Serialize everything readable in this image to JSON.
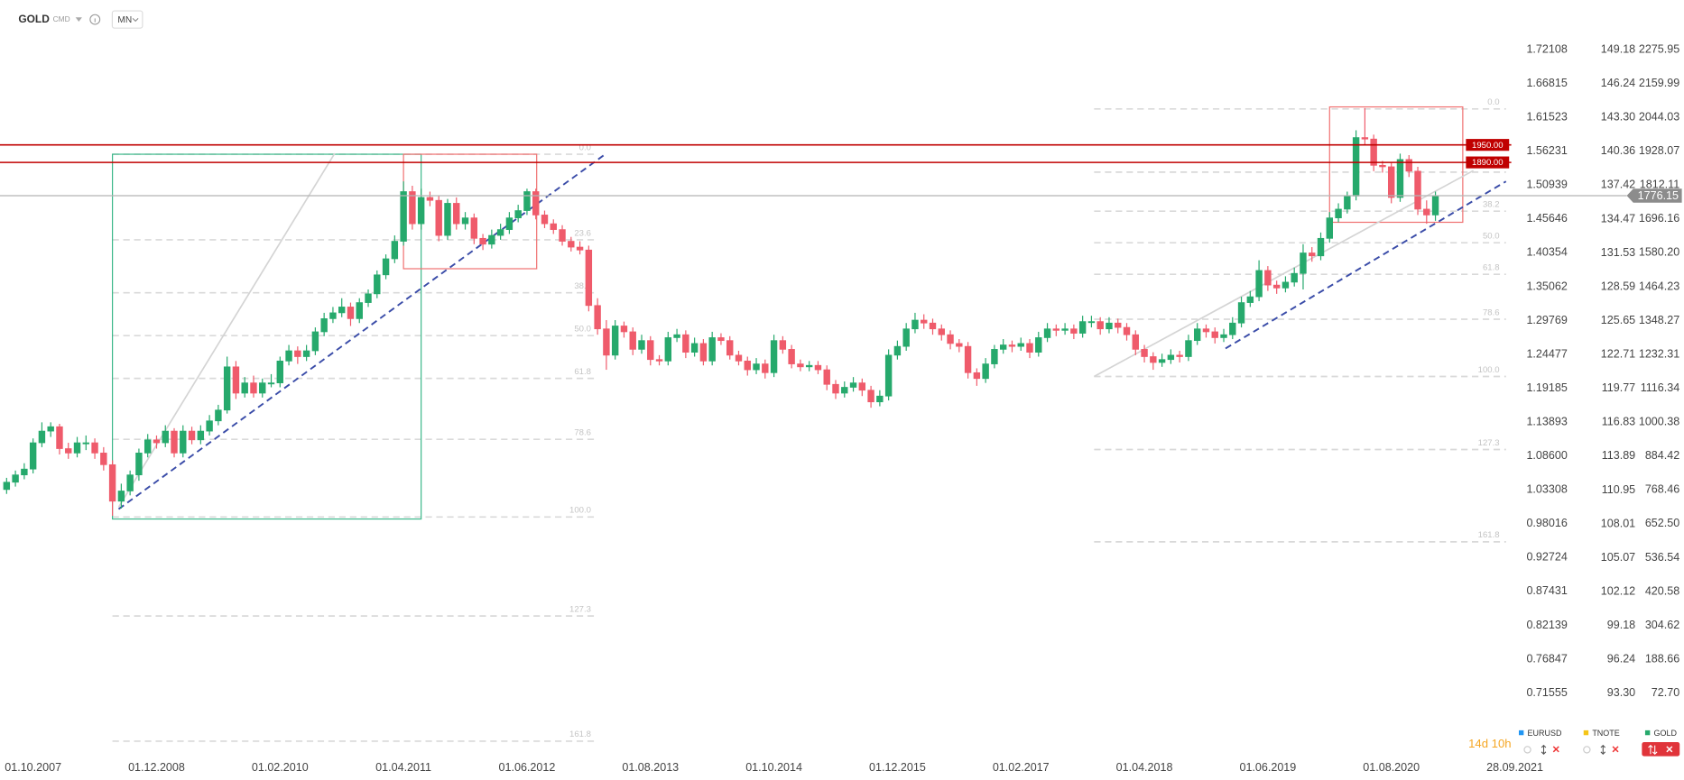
{
  "chart_data": {
    "type": "candlestick",
    "symbol": "GOLD",
    "market": "CMD",
    "interval": "MN",
    "up_color": "#26a96c",
    "down_color": "#ef5b6b",
    "grid": false,
    "xlim": [
      -0.75,
      170.6
    ],
    "xticks": [
      {
        "value": 3,
        "label": "01.10.2007"
      },
      {
        "value": 17,
        "label": "01.12.2008"
      },
      {
        "value": 31,
        "label": "01.02.2010"
      },
      {
        "value": 45,
        "label": "01.04.2011"
      },
      {
        "value": 59,
        "label": "01.06.2012"
      },
      {
        "value": 73,
        "label": "01.08.2013"
      },
      {
        "value": 87,
        "label": "01.10.2014"
      },
      {
        "value": 101,
        "label": "01.12.2015"
      },
      {
        "value": 115,
        "label": "01.02.2017"
      },
      {
        "value": 129,
        "label": "01.04.2018"
      },
      {
        "value": 143,
        "label": "01.06.2019"
      },
      {
        "value": 157,
        "label": "01.08.2020"
      },
      {
        "value": 171,
        "label": "28.09.2021"
      }
    ],
    "ylim": [
      -139.4,
      2445.8
    ],
    "yticks": [
      2275.95,
      2159.99,
      2044.03,
      1928.07,
      1812.11,
      1696.16,
      {
        "value": 1580.2,
        "label": "1580.20"
      },
      1464.23,
      1348.27,
      1232.31,
      1116.34,
      1000.38,
      884.42,
      768.46,
      {
        "value": 652.5,
        "label": "652.50"
      },
      536.54,
      420.58,
      304.62,
      188.66,
      {
        "value": 72.7,
        "label": "72.70"
      }
    ],
    "y2lim": [
      0.61855,
      1.79862
    ],
    "y2ticks": [
      1.72108,
      1.66815,
      1.61523,
      1.56231,
      1.50939,
      1.45646,
      1.40354,
      1.35062,
      1.29769,
      1.24477,
      1.19185,
      1.13893,
      {
        "value": 1.086,
        "label": "1.08600"
      },
      1.03308,
      0.98016,
      0.92724,
      0.87431,
      0.82139,
      0.76847,
      0.71555
    ],
    "y3lim": [
      87.94,
      153.49
    ],
    "y3ticks": [
      149.18,
      146.24,
      {
        "value": 143.3,
        "label": "143.30"
      },
      140.36,
      137.42,
      134.47,
      131.53,
      128.59,
      125.65,
      122.71,
      119.77,
      116.83,
      113.89,
      110.95,
      108.01,
      105.07,
      102.12,
      99.18,
      96.24,
      {
        "value": 93.3,
        "label": "93.30"
      }
    ],
    "ohlc": [
      [
        770,
        810,
        755,
        795
      ],
      [
        795,
        835,
        780,
        820
      ],
      [
        820,
        860,
        805,
        840
      ],
      [
        840,
        945,
        825,
        930
      ],
      [
        930,
        1000,
        915,
        970
      ],
      [
        970,
        1000,
        950,
        985
      ],
      [
        985,
        995,
        890,
        910
      ],
      [
        910,
        930,
        875,
        895
      ],
      [
        895,
        950,
        880,
        930
      ],
      [
        930,
        955,
        905,
        930
      ],
      [
        930,
        945,
        875,
        895
      ],
      [
        895,
        915,
        835,
        855
      ],
      [
        855,
        870,
        680,
        730
      ],
      [
        730,
        790,
        705,
        765
      ],
      [
        765,
        835,
        750,
        820
      ],
      [
        820,
        910,
        800,
        895
      ],
      [
        895,
        960,
        880,
        940
      ],
      [
        940,
        955,
        910,
        930
      ],
      [
        930,
        990,
        915,
        970
      ],
      [
        970,
        980,
        880,
        895
      ],
      [
        895,
        990,
        880,
        970
      ],
      [
        970,
        985,
        925,
        940
      ],
      [
        940,
        990,
        925,
        970
      ],
      [
        970,
        1025,
        955,
        1005
      ],
      [
        1005,
        1060,
        990,
        1042
      ],
      [
        1042,
        1225,
        1030,
        1190
      ],
      [
        1190,
        1210,
        1080,
        1100
      ],
      [
        1100,
        1155,
        1085,
        1135
      ],
      [
        1135,
        1160,
        1085,
        1100
      ],
      [
        1100,
        1150,
        1085,
        1135
      ],
      [
        1135,
        1165,
        1120,
        1135
      ],
      [
        1135,
        1225,
        1120,
        1210
      ],
      [
        1210,
        1265,
        1195,
        1245
      ],
      [
        1245,
        1260,
        1200,
        1225
      ],
      [
        1225,
        1265,
        1210,
        1245
      ],
      [
        1245,
        1325,
        1230,
        1310
      ],
      [
        1310,
        1375,
        1295,
        1355
      ],
      [
        1355,
        1395,
        1340,
        1375
      ],
      [
        1375,
        1425,
        1360,
        1395
      ],
      [
        1395,
        1410,
        1330,
        1355
      ],
      [
        1355,
        1425,
        1340,
        1410
      ],
      [
        1410,
        1455,
        1395,
        1440
      ],
      [
        1440,
        1520,
        1425,
        1505
      ],
      [
        1505,
        1575,
        1490,
        1560
      ],
      [
        1560,
        1640,
        1545,
        1620
      ],
      [
        1620,
        1825,
        1605,
        1790
      ],
      [
        1790,
        1810,
        1660,
        1680
      ],
      [
        1680,
        1800,
        1660,
        1770
      ],
      [
        1770,
        1790,
        1740,
        1760
      ],
      [
        1760,
        1775,
        1620,
        1640
      ],
      [
        1640,
        1765,
        1625,
        1750
      ],
      [
        1750,
        1770,
        1660,
        1680
      ],
      [
        1680,
        1720,
        1660,
        1700
      ],
      [
        1700,
        1715,
        1610,
        1630
      ],
      [
        1630,
        1645,
        1590,
        1610
      ],
      [
        1610,
        1660,
        1595,
        1640
      ],
      [
        1640,
        1680,
        1625,
        1660
      ],
      [
        1660,
        1720,
        1645,
        1700
      ],
      [
        1700,
        1745,
        1685,
        1725
      ],
      [
        1725,
        1800,
        1710,
        1790
      ],
      [
        1790,
        1800,
        1695,
        1710
      ],
      [
        1710,
        1725,
        1665,
        1680
      ],
      [
        1680,
        1695,
        1645,
        1660
      ],
      [
        1660,
        1675,
        1605,
        1620
      ],
      [
        1620,
        1635,
        1585,
        1600
      ],
      [
        1600,
        1620,
        1575,
        1590
      ],
      [
        1590,
        1605,
        1380,
        1400
      ],
      [
        1400,
        1425,
        1300,
        1320
      ],
      [
        1320,
        1350,
        1180,
        1230
      ],
      [
        1230,
        1350,
        1215,
        1330
      ],
      [
        1330,
        1345,
        1290,
        1310
      ],
      [
        1310,
        1325,
        1230,
        1250
      ],
      [
        1250,
        1300,
        1235,
        1280
      ],
      [
        1280,
        1295,
        1195,
        1215
      ],
      [
        1215,
        1230,
        1195,
        1210
      ],
      [
        1210,
        1310,
        1195,
        1290
      ],
      [
        1290,
        1320,
        1275,
        1300
      ],
      [
        1300,
        1315,
        1220,
        1240
      ],
      [
        1240,
        1290,
        1225,
        1270
      ],
      [
        1270,
        1285,
        1195,
        1210
      ],
      [
        1210,
        1310,
        1195,
        1290
      ],
      [
        1290,
        1305,
        1265,
        1280
      ],
      [
        1280,
        1295,
        1215,
        1230
      ],
      [
        1230,
        1245,
        1195,
        1210
      ],
      [
        1210,
        1225,
        1160,
        1180
      ],
      [
        1180,
        1220,
        1165,
        1200
      ],
      [
        1200,
        1215,
        1150,
        1170
      ],
      [
        1170,
        1300,
        1155,
        1280
      ],
      [
        1280,
        1295,
        1235,
        1250
      ],
      [
        1250,
        1265,
        1185,
        1200
      ],
      [
        1200,
        1215,
        1175,
        1190
      ],
      [
        1190,
        1210,
        1175,
        1195
      ],
      [
        1195,
        1210,
        1165,
        1180
      ],
      [
        1180,
        1195,
        1110,
        1130
      ],
      [
        1130,
        1145,
        1080,
        1100
      ],
      [
        1100,
        1140,
        1085,
        1120
      ],
      [
        1120,
        1155,
        1105,
        1135
      ],
      [
        1135,
        1150,
        1090,
        1110
      ],
      [
        1110,
        1125,
        1050,
        1070
      ],
      [
        1070,
        1110,
        1055,
        1090
      ],
      [
        1090,
        1250,
        1075,
        1230
      ],
      [
        1230,
        1280,
        1215,
        1260
      ],
      [
        1260,
        1340,
        1245,
        1320
      ],
      [
        1320,
        1375,
        1305,
        1350
      ],
      [
        1350,
        1370,
        1320,
        1340
      ],
      [
        1340,
        1355,
        1300,
        1320
      ],
      [
        1320,
        1335,
        1280,
        1300
      ],
      [
        1300,
        1315,
        1250,
        1270
      ],
      [
        1270,
        1285,
        1240,
        1260
      ],
      [
        1260,
        1275,
        1150,
        1170
      ],
      [
        1170,
        1185,
        1125,
        1150
      ],
      [
        1150,
        1220,
        1135,
        1200
      ],
      [
        1200,
        1265,
        1185,
        1250
      ],
      [
        1250,
        1285,
        1235,
        1265
      ],
      [
        1265,
        1280,
        1240,
        1260
      ],
      [
        1260,
        1290,
        1245,
        1270
      ],
      [
        1270,
        1285,
        1220,
        1240
      ],
      [
        1240,
        1310,
        1225,
        1290
      ],
      [
        1290,
        1340,
        1275,
        1320
      ],
      [
        1320,
        1335,
        1295,
        1315
      ],
      [
        1315,
        1340,
        1300,
        1320
      ],
      [
        1320,
        1335,
        1285,
        1305
      ],
      [
        1305,
        1365,
        1290,
        1345
      ],
      [
        1345,
        1365,
        1325,
        1345
      ],
      [
        1345,
        1360,
        1300,
        1320
      ],
      [
        1320,
        1360,
        1305,
        1340
      ],
      [
        1340,
        1355,
        1305,
        1325
      ],
      [
        1325,
        1340,
        1280,
        1300
      ],
      [
        1300,
        1315,
        1230,
        1250
      ],
      [
        1250,
        1265,
        1205,
        1225
      ],
      [
        1225,
        1240,
        1180,
        1205
      ],
      [
        1205,
        1235,
        1190,
        1215
      ],
      [
        1215,
        1250,
        1200,
        1230
      ],
      [
        1230,
        1245,
        1205,
        1225
      ],
      [
        1225,
        1300,
        1210,
        1280
      ],
      [
        1280,
        1340,
        1265,
        1320
      ],
      [
        1320,
        1335,
        1290,
        1310
      ],
      [
        1310,
        1325,
        1270,
        1290
      ],
      [
        1290,
        1320,
        1275,
        1300
      ],
      [
        1300,
        1360,
        1285,
        1340
      ],
      [
        1340,
        1430,
        1325,
        1410
      ],
      [
        1410,
        1450,
        1395,
        1430
      ],
      [
        1430,
        1555,
        1415,
        1520
      ],
      [
        1520,
        1535,
        1450,
        1470
      ],
      [
        1470,
        1485,
        1440,
        1460
      ],
      [
        1460,
        1500,
        1445,
        1480
      ],
      [
        1480,
        1530,
        1465,
        1510
      ],
      [
        1510,
        1610,
        1455,
        1580
      ],
      [
        1580,
        1600,
        1550,
        1570
      ],
      [
        1570,
        1650,
        1555,
        1630
      ],
      [
        1630,
        1720,
        1615,
        1700
      ],
      [
        1700,
        1750,
        1685,
        1730
      ],
      [
        1730,
        1790,
        1715,
        1775
      ],
      [
        1775,
        2000,
        1760,
        1975
      ],
      [
        1975,
        2076,
        1950,
        1970
      ],
      [
        1970,
        1985,
        1860,
        1880
      ],
      [
        1880,
        1895,
        1855,
        1875
      ],
      [
        1875,
        1890,
        1750,
        1770
      ],
      [
        1770,
        1920,
        1755,
        1900
      ],
      [
        1900,
        1915,
        1840,
        1860
      ],
      [
        1860,
        1875,
        1710,
        1730
      ],
      [
        1730,
        1760,
        1680,
        1710
      ],
      [
        1710,
        1790,
        1690,
        1776
      ]
    ],
    "fibonacci": [
      {
        "x": [
          12,
          67
        ],
        "price_0": 1918,
        "price_100": 676,
        "levels": [
          0,
          23.6,
          38.2,
          50,
          61.8,
          78.6,
          100,
          127.3,
          161.8
        ],
        "level_labels": [
          "0.0",
          "23.6",
          "38.2",
          "50.0",
          "61.8",
          "78.6",
          "100.0",
          "127.3",
          "161.8"
        ]
      },
      {
        "x": [
          123.3,
          170
        ],
        "price_0": 2073,
        "price_100": 1157,
        "levels": [
          0,
          23.6,
          38.2,
          50,
          61.8,
          78.6,
          100,
          127.3,
          161.8
        ],
        "level_labels": [
          "0.0",
          "23.6",
          "38.2",
          "50.0",
          "61.8",
          "78.6",
          "100.0",
          "127.3",
          "161.8"
        ]
      }
    ],
    "rectangles": [
      {
        "x": [
          12,
          47
        ],
        "y": [
          1918,
          669
        ],
        "color": "#3bb88a"
      },
      {
        "x": [
          45,
          60.1
        ],
        "y": [
          1918,
          1526
        ],
        "color": "#f07070"
      },
      {
        "x": [
          150,
          165.1
        ],
        "y": [
          2080,
          1685
        ],
        "color": "#f07070"
      }
    ],
    "trendlines": [
      {
        "x": [
          12.7,
          68
        ],
        "y": [
          703,
          1921
        ],
        "color": "#3a4ca8",
        "dashed": true
      },
      {
        "x": [
          12.7,
          37.2
        ],
        "y": [
          710,
          1921
        ],
        "color": "#d4d4d4",
        "dashed": false
      },
      {
        "x": [
          138.2,
          170
        ],
        "y": [
          1253,
          1825
        ],
        "color": "#3a4ca8",
        "dashed": true
      },
      {
        "x": [
          123.3,
          166.3
        ],
        "y": [
          1157,
          1862
        ],
        "color": "#d4d4d4",
        "dashed": false
      }
    ],
    "horizontal_lines": [
      {
        "value": 1950,
        "label": "1950.00",
        "color": "#c00000"
      },
      {
        "value": 1890,
        "label": "1890.00",
        "color": "#c00000"
      }
    ],
    "last_price": 1776.15,
    "last_price_color": "#8c8c8c",
    "countdown": "14d 10h",
    "legend": [
      {
        "name": "EURUSD",
        "color": "#2196f3"
      },
      {
        "name": "TNOTE",
        "color": "#f5c518"
      },
      {
        "name": "GOLD",
        "color": "#26a96c"
      }
    ]
  }
}
